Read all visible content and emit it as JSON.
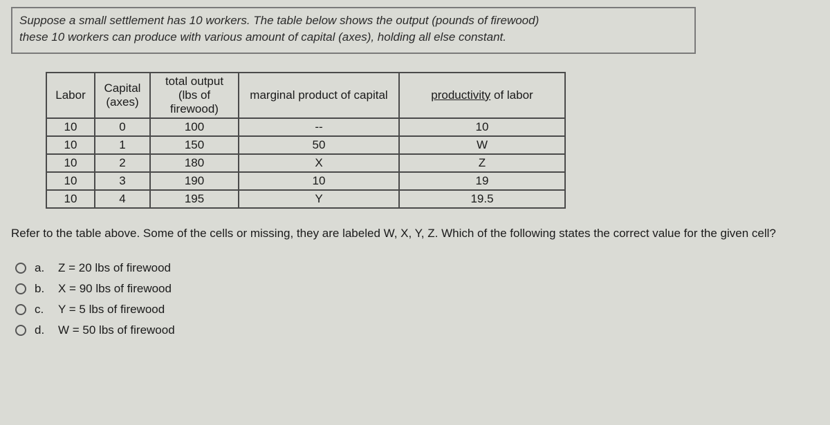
{
  "intro": {
    "line1": "Suppose a small settlement has 10 workers.  The table below shows the output (pounds of firewood)",
    "line2": "these 10 workers can produce with various amount of capital (axes), holding all else constant."
  },
  "table": {
    "headers": {
      "labor": "Labor",
      "capital": "Capital (axes)",
      "output": "total output (lbs of firewood)",
      "mpc": "marginal product of capital",
      "prod_prefix": "productivity",
      "prod_suffix": " of labor"
    },
    "rows": [
      {
        "labor": "10",
        "capital": "0",
        "output": "100",
        "mpc": "--",
        "prod": "10"
      },
      {
        "labor": "10",
        "capital": "1",
        "output": "150",
        "mpc": "50",
        "prod": "W"
      },
      {
        "labor": "10",
        "capital": "2",
        "output": "180",
        "mpc": "X",
        "prod": "Z"
      },
      {
        "labor": "10",
        "capital": "3",
        "output": "190",
        "mpc": "10",
        "prod": "19"
      },
      {
        "labor": "10",
        "capital": "4",
        "output": "195",
        "mpc": "Y",
        "prod": "19.5"
      }
    ]
  },
  "question": "Refer to the table above. Some of the cells or missing, they are labeled W, X, Y, Z. Which of the following states the correct value for the given cell?",
  "options": {
    "a": {
      "letter": "a.",
      "text": "Z = 20 lbs of firewood"
    },
    "b": {
      "letter": "b.",
      "text": "X = 90 lbs of firewood"
    },
    "c": {
      "letter": "c.",
      "text": "Y = 5 lbs of firewood"
    },
    "d": {
      "letter": "d.",
      "text": "W = 50 lbs of firewood"
    }
  }
}
